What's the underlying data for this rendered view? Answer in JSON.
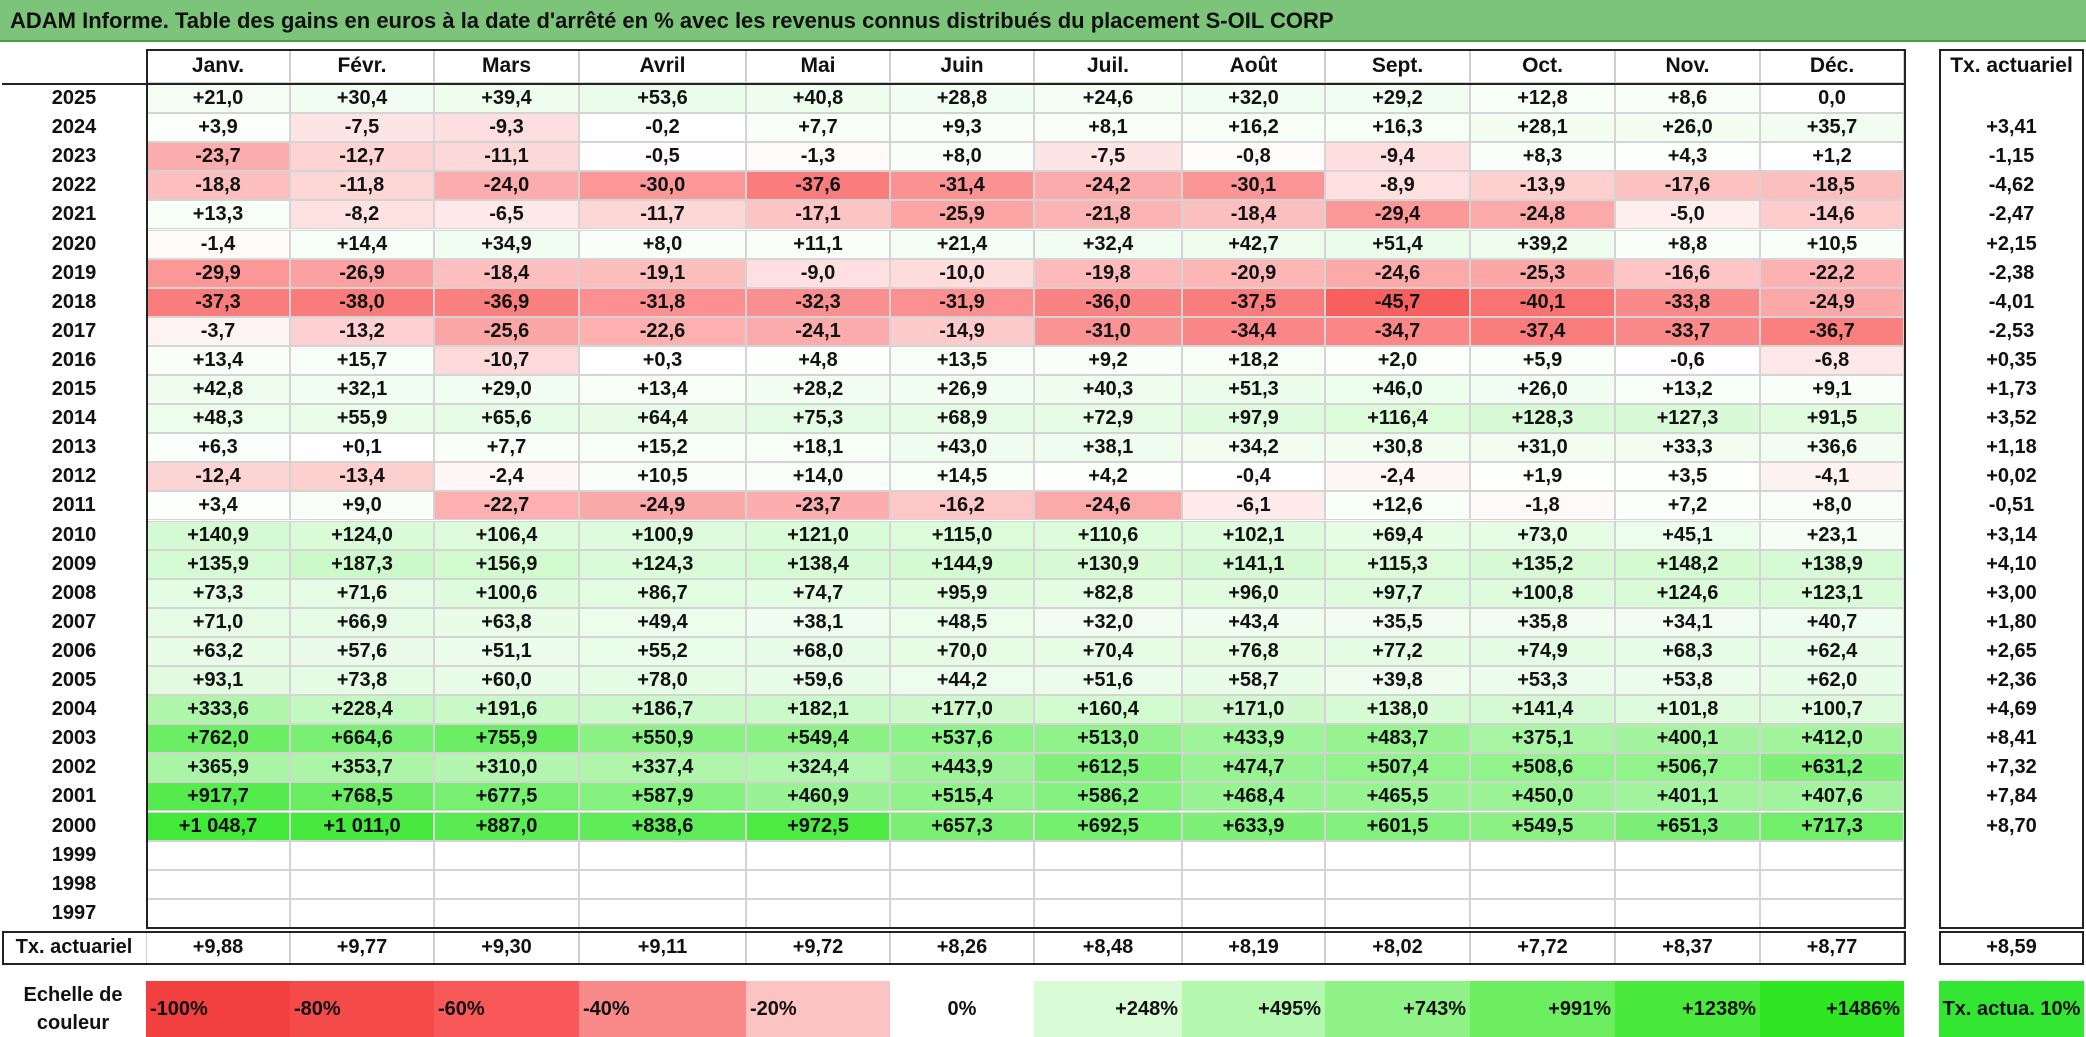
{
  "title": "ADAM Informe. Table des gains en euros à la date d'arrêté en % avec les revenus connus distribués du placement S-OIL CORP",
  "months": [
    "Janv.",
    "Févr.",
    "Mars",
    "Avril",
    "Mai",
    "Juin",
    "Juil.",
    "Août",
    "Sept.",
    "Oct.",
    "Nov.",
    "Déc."
  ],
  "annual_header": "Tx. actuariel",
  "rows": [
    {
      "year": "2025",
      "values": [
        "+21,0",
        "+30,4",
        "+39,4",
        "+53,6",
        "+40,8",
        "+28,8",
        "+24,6",
        "+32,0",
        "+29,2",
        "+12,8",
        "+8,6",
        "0,0"
      ],
      "rate": ""
    },
    {
      "year": "2024",
      "values": [
        "+3,9",
        "-7,5",
        "-9,3",
        "-0,2",
        "+7,7",
        "+9,3",
        "+8,1",
        "+16,2",
        "+16,3",
        "+28,1",
        "+26,0",
        "+35,7"
      ],
      "rate": "+3,41"
    },
    {
      "year": "2023",
      "values": [
        "-23,7",
        "-12,7",
        "-11,1",
        "-0,5",
        "-1,3",
        "+8,0",
        "-7,5",
        "-0,8",
        "-9,4",
        "+8,3",
        "+4,3",
        "+1,2"
      ],
      "rate": "-1,15"
    },
    {
      "year": "2022",
      "values": [
        "-18,8",
        "-11,8",
        "-24,0",
        "-30,0",
        "-37,6",
        "-31,4",
        "-24,2",
        "-30,1",
        "-8,9",
        "-13,9",
        "-17,6",
        "-18,5"
      ],
      "rate": "-4,62"
    },
    {
      "year": "2021",
      "values": [
        "+13,3",
        "-8,2",
        "-6,5",
        "-11,7",
        "-17,1",
        "-25,9",
        "-21,8",
        "-18,4",
        "-29,4",
        "-24,8",
        "-5,0",
        "-14,6"
      ],
      "rate": "-2,47"
    },
    {
      "year": "2020",
      "values": [
        "-1,4",
        "+14,4",
        "+34,9",
        "+8,0",
        "+11,1",
        "+21,4",
        "+32,4",
        "+42,7",
        "+51,4",
        "+39,2",
        "+8,8",
        "+10,5"
      ],
      "rate": "+2,15"
    },
    {
      "year": "2019",
      "values": [
        "-29,9",
        "-26,9",
        "-18,4",
        "-19,1",
        "-9,0",
        "-10,0",
        "-19,8",
        "-20,9",
        "-24,6",
        "-25,3",
        "-16,6",
        "-22,2"
      ],
      "rate": "-2,38"
    },
    {
      "year": "2018",
      "values": [
        "-37,3",
        "-38,0",
        "-36,9",
        "-31,8",
        "-32,3",
        "-31,9",
        "-36,0",
        "-37,5",
        "-45,7",
        "-40,1",
        "-33,8",
        "-24,9"
      ],
      "rate": "-4,01"
    },
    {
      "year": "2017",
      "values": [
        "-3,7",
        "-13,2",
        "-25,6",
        "-22,6",
        "-24,1",
        "-14,9",
        "-31,0",
        "-34,4",
        "-34,7",
        "-37,4",
        "-33,7",
        "-36,7"
      ],
      "rate": "-2,53"
    },
    {
      "year": "2016",
      "values": [
        "+13,4",
        "+15,7",
        "-10,7",
        "+0,3",
        "+4,8",
        "+13,5",
        "+9,2",
        "+18,2",
        "+2,0",
        "+5,9",
        "-0,6",
        "-6,8"
      ],
      "rate": "+0,35"
    },
    {
      "year": "2015",
      "values": [
        "+42,8",
        "+32,1",
        "+29,0",
        "+13,4",
        "+28,2",
        "+26,9",
        "+40,3",
        "+51,3",
        "+46,0",
        "+26,0",
        "+13,2",
        "+9,1"
      ],
      "rate": "+1,73"
    },
    {
      "year": "2014",
      "values": [
        "+48,3",
        "+55,9",
        "+65,6",
        "+64,4",
        "+75,3",
        "+68,9",
        "+72,9",
        "+97,9",
        "+116,4",
        "+128,3",
        "+127,3",
        "+91,5"
      ],
      "rate": "+3,52"
    },
    {
      "year": "2013",
      "values": [
        "+6,3",
        "+0,1",
        "+7,7",
        "+15,2",
        "+18,1",
        "+43,0",
        "+38,1",
        "+34,2",
        "+30,8",
        "+31,0",
        "+33,3",
        "+36,6"
      ],
      "rate": "+1,18"
    },
    {
      "year": "2012",
      "values": [
        "-12,4",
        "-13,4",
        "-2,4",
        "+10,5",
        "+14,0",
        "+14,5",
        "+4,2",
        "-0,4",
        "-2,4",
        "+1,9",
        "+3,5",
        "-4,1"
      ],
      "rate": "+0,02"
    },
    {
      "year": "2011",
      "values": [
        "+3,4",
        "+9,0",
        "-22,7",
        "-24,9",
        "-23,7",
        "-16,2",
        "-24,6",
        "-6,1",
        "+12,6",
        "-1,8",
        "+7,2",
        "+8,0"
      ],
      "rate": "-0,51"
    },
    {
      "year": "2010",
      "values": [
        "+140,9",
        "+124,0",
        "+106,4",
        "+100,9",
        "+121,0",
        "+115,0",
        "+110,6",
        "+102,1",
        "+69,4",
        "+73,0",
        "+45,1",
        "+23,1"
      ],
      "rate": "+3,14"
    },
    {
      "year": "2009",
      "values": [
        "+135,9",
        "+187,3",
        "+156,9",
        "+124,3",
        "+138,4",
        "+144,9",
        "+130,9",
        "+141,1",
        "+115,3",
        "+135,2",
        "+148,2",
        "+138,9"
      ],
      "rate": "+4,10"
    },
    {
      "year": "2008",
      "values": [
        "+73,3",
        "+71,6",
        "+100,6",
        "+86,7",
        "+74,7",
        "+95,9",
        "+82,8",
        "+96,0",
        "+97,7",
        "+100,8",
        "+124,6",
        "+123,1"
      ],
      "rate": "+3,00"
    },
    {
      "year": "2007",
      "values": [
        "+71,0",
        "+66,9",
        "+63,8",
        "+49,4",
        "+38,1",
        "+48,5",
        "+32,0",
        "+43,4",
        "+35,5",
        "+35,8",
        "+34,1",
        "+40,7"
      ],
      "rate": "+1,80"
    },
    {
      "year": "2006",
      "values": [
        "+63,2",
        "+57,6",
        "+51,1",
        "+55,2",
        "+68,0",
        "+70,0",
        "+70,4",
        "+76,8",
        "+77,2",
        "+74,9",
        "+68,3",
        "+62,4"
      ],
      "rate": "+2,65"
    },
    {
      "year": "2005",
      "values": [
        "+93,1",
        "+73,8",
        "+60,0",
        "+78,0",
        "+59,6",
        "+44,2",
        "+51,6",
        "+58,7",
        "+39,8",
        "+53,3",
        "+53,8",
        "+62,0"
      ],
      "rate": "+2,36"
    },
    {
      "year": "2004",
      "values": [
        "+333,6",
        "+228,4",
        "+191,6",
        "+186,7",
        "+182,1",
        "+177,0",
        "+160,4",
        "+171,0",
        "+138,0",
        "+141,4",
        "+101,8",
        "+100,7"
      ],
      "rate": "+4,69"
    },
    {
      "year": "2003",
      "values": [
        "+762,0",
        "+664,6",
        "+755,9",
        "+550,9",
        "+549,4",
        "+537,6",
        "+513,0",
        "+433,9",
        "+483,7",
        "+375,1",
        "+400,1",
        "+412,0"
      ],
      "rate": "+8,41"
    },
    {
      "year": "2002",
      "values": [
        "+365,9",
        "+353,7",
        "+310,0",
        "+337,4",
        "+324,4",
        "+443,9",
        "+612,5",
        "+474,7",
        "+507,4",
        "+508,6",
        "+506,7",
        "+631,2"
      ],
      "rate": "+7,32"
    },
    {
      "year": "2001",
      "values": [
        "+917,7",
        "+768,5",
        "+677,5",
        "+587,9",
        "+460,9",
        "+515,4",
        "+586,2",
        "+468,4",
        "+465,5",
        "+450,0",
        "+401,1",
        "+407,6"
      ],
      "rate": "+7,84"
    },
    {
      "year": "2000",
      "values": [
        "+1 048,7",
        "+1 011,0",
        "+887,0",
        "+838,6",
        "+972,5",
        "+657,3",
        "+692,5",
        "+633,9",
        "+601,5",
        "+549,5",
        "+651,3",
        "+717,3"
      ],
      "rate": "+8,70"
    },
    {
      "year": "1999",
      "values": [
        "",
        "",
        "",
        "",
        "",
        "",
        "",
        "",
        "",
        "",
        "",
        ""
      ],
      "rate": ""
    },
    {
      "year": "1998",
      "values": [
        "",
        "",
        "",
        "",
        "",
        "",
        "",
        "",
        "",
        "",
        "",
        ""
      ],
      "rate": ""
    },
    {
      "year": "1997",
      "values": [
        "",
        "",
        "",
        "",
        "",
        "",
        "",
        "",
        "",
        "",
        "",
        ""
      ],
      "rate": ""
    }
  ],
  "footer": {
    "label": "Tx. actuariel",
    "values": [
      "+9,88",
      "+9,77",
      "+9,30",
      "+9,11",
      "+9,72",
      "+8,26",
      "+8,48",
      "+8,19",
      "+8,02",
      "+7,72",
      "+8,37",
      "+8,77"
    ],
    "total": "+8,59"
  },
  "scale": {
    "label": "Echelle de couleur",
    "items": [
      {
        "text": "-100%",
        "color": "#f23f3f"
      },
      {
        "text": "-80%",
        "color": "#f54a4a"
      },
      {
        "text": "-60%",
        "color": "#f85858"
      },
      {
        "text": "-40%",
        "color": "#fa8a8a"
      },
      {
        "text": "-20%",
        "color": "#fcc3c3"
      },
      {
        "text": "0%",
        "color": "#ffffff"
      },
      {
        "text": "+248%",
        "color": "#d9fbd6"
      },
      {
        "text": "+495%",
        "color": "#b4f7ae"
      },
      {
        "text": "+743%",
        "color": "#8ff286"
      },
      {
        "text": "+991%",
        "color": "#6cee60"
      },
      {
        "text": "+1238%",
        "color": "#4aea3c"
      },
      {
        "text": "+1486%",
        "color": "#2fe622"
      }
    ],
    "legend_rate": "Tx. actua. 10%",
    "legend_rate_color": "#32e632"
  }
}
